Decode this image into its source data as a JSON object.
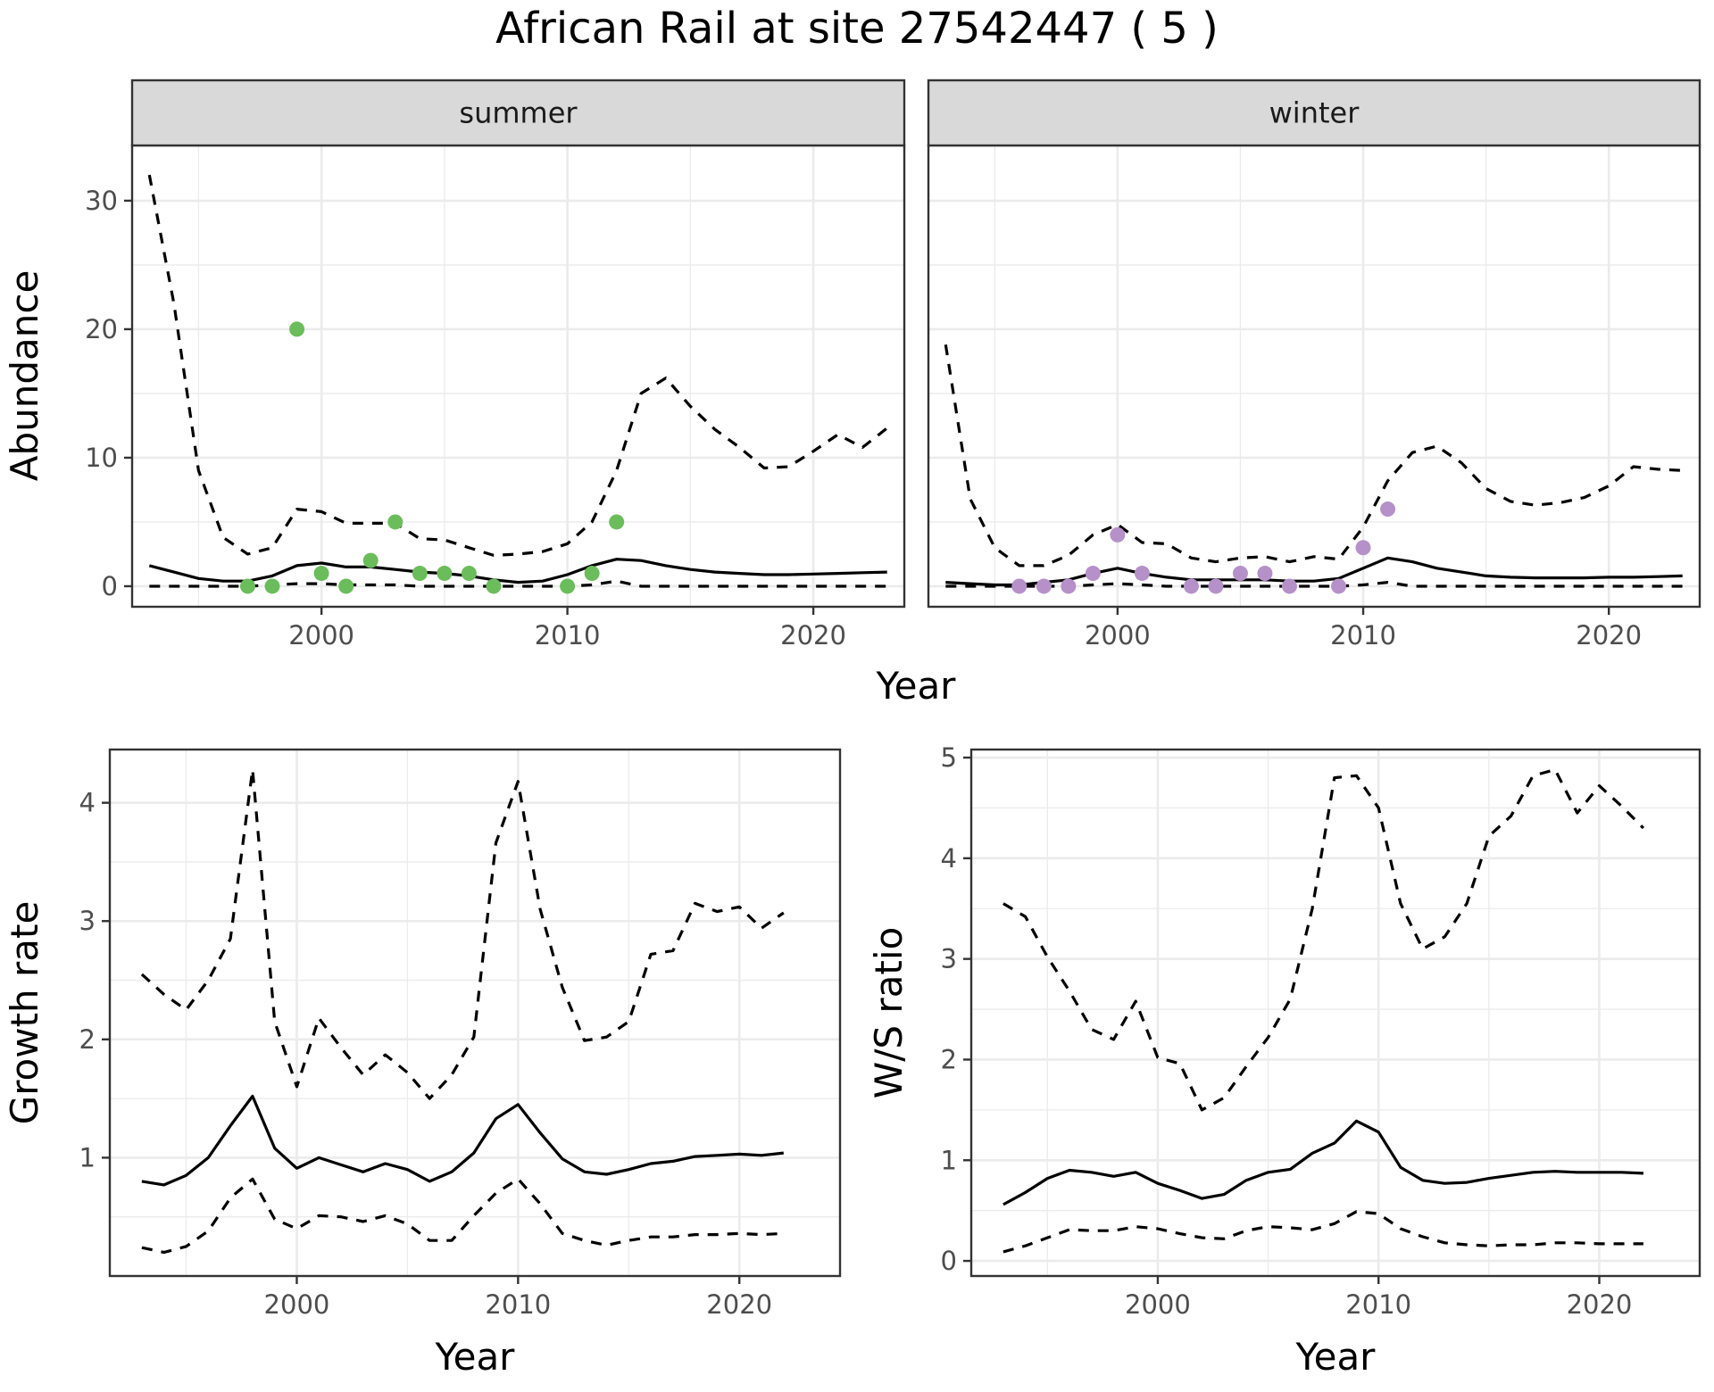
{
  "title": "African Rail at site 27542447 ( 5 )",
  "colors": {
    "summer_points": "#6abd5a",
    "winter_points": "#b690c9"
  },
  "chart_data": [
    {
      "type": "line",
      "panel": "abundance-summer",
      "strip": "summer",
      "ylabel": "Abundance",
      "xlabel": "Year",
      "xlim": [
        1992.3,
        2023.7
      ],
      "ylim": [
        -1.6,
        34.3
      ],
      "x_ticks": [
        2000,
        2010,
        2020
      ],
      "y_ticks": [
        0,
        10,
        20,
        30
      ],
      "grid": true,
      "x": [
        1993,
        1994,
        1995,
        1996,
        1997,
        1998,
        1999,
        2000,
        2001,
        2002,
        2003,
        2004,
        2005,
        2006,
        2007,
        2008,
        2009,
        2010,
        2011,
        2012,
        2013,
        2014,
        2015,
        2016,
        2017,
        2018,
        2019,
        2020,
        2021,
        2022,
        2023
      ],
      "series": [
        {
          "role": "mean",
          "values": [
            1.6,
            1.1,
            0.6,
            0.4,
            0.4,
            0.8,
            1.6,
            1.8,
            1.5,
            1.5,
            1.3,
            1.1,
            1.0,
            0.8,
            0.5,
            0.3,
            0.4,
            0.9,
            1.6,
            2.1,
            2.0,
            1.6,
            1.3,
            1.1,
            1.0,
            0.9,
            0.9,
            0.95,
            1.0,
            1.05,
            1.1
          ]
        },
        {
          "role": "upper",
          "values": [
            32.0,
            22.0,
            9.0,
            3.8,
            2.5,
            3.0,
            6.0,
            5.8,
            4.9,
            4.9,
            4.9,
            3.7,
            3.6,
            3.0,
            2.4,
            2.5,
            2.7,
            3.3,
            5.0,
            9.0,
            15.0,
            16.2,
            14.0,
            12.2,
            10.8,
            9.2,
            9.3,
            10.5,
            11.8,
            10.8,
            12.3
          ]
        },
        {
          "role": "lower",
          "values": [
            0,
            0,
            0,
            0,
            0,
            0.1,
            0.2,
            0.2,
            0.1,
            0.1,
            0.1,
            0,
            0,
            0,
            0,
            0,
            0,
            0,
            0.1,
            0.4,
            0,
            0,
            0,
            0,
            0,
            0,
            0,
            0,
            0,
            0,
            0
          ]
        }
      ],
      "points": {
        "x": [
          1997,
          1998,
          1999,
          2000,
          2001,
          2002,
          2003,
          2004,
          2005,
          2006,
          2007,
          2010,
          2011,
          2012
        ],
        "y": [
          0,
          0,
          20,
          1,
          0,
          2,
          5,
          1,
          1,
          1,
          0,
          0,
          1,
          5
        ]
      }
    },
    {
      "type": "line",
      "panel": "abundance-winter",
      "strip": "winter",
      "ylabel": "",
      "xlabel": "Year",
      "xlim": [
        1992.3,
        2023.7
      ],
      "ylim": [
        -1.6,
        34.3
      ],
      "x_ticks": [
        2000,
        2010,
        2020
      ],
      "y_ticks": [
        0,
        10,
        20,
        30
      ],
      "grid": true,
      "x": [
        1993,
        1994,
        1995,
        1996,
        1997,
        1998,
        1999,
        2000,
        2001,
        2002,
        2003,
        2004,
        2005,
        2006,
        2007,
        2008,
        2009,
        2010,
        2011,
        2012,
        2013,
        2014,
        2015,
        2016,
        2017,
        2018,
        2019,
        2020,
        2021,
        2022,
        2023
      ],
      "series": [
        {
          "role": "mean",
          "values": [
            0.3,
            0.2,
            0.1,
            0.1,
            0.3,
            0.5,
            1.0,
            1.4,
            1.0,
            0.7,
            0.5,
            0.5,
            0.5,
            0.5,
            0.4,
            0.4,
            0.6,
            1.4,
            2.2,
            1.9,
            1.4,
            1.1,
            0.8,
            0.7,
            0.65,
            0.65,
            0.65,
            0.7,
            0.7,
            0.75,
            0.8
          ]
        },
        {
          "role": "upper",
          "values": [
            18.8,
            6.8,
            3.0,
            1.6,
            1.6,
            2.4,
            4.0,
            4.8,
            3.4,
            3.3,
            2.2,
            1.9,
            2.2,
            2.3,
            1.9,
            2.3,
            2.1,
            4.6,
            8.2,
            10.4,
            10.9,
            9.6,
            7.6,
            6.6,
            6.3,
            6.5,
            6.9,
            7.8,
            9.3,
            9.1,
            9.0
          ]
        },
        {
          "role": "lower",
          "values": [
            0,
            0,
            0,
            0,
            0,
            0,
            0.1,
            0.2,
            0.1,
            0,
            0,
            0,
            0,
            0,
            0,
            0,
            0,
            0.1,
            0.3,
            0,
            0,
            0,
            0,
            0,
            0,
            0,
            0,
            0,
            0,
            0,
            0
          ]
        }
      ],
      "points": {
        "x": [
          1996,
          1997,
          1998,
          1999,
          2000,
          2001,
          2003,
          2004,
          2005,
          2006,
          2007,
          2009,
          2010,
          2011
        ],
        "y": [
          0,
          0,
          0,
          1,
          4,
          1,
          0,
          0,
          1,
          1,
          0,
          0,
          3,
          6
        ]
      }
    },
    {
      "type": "line",
      "panel": "growth-rate",
      "strip": "",
      "ylabel": "Growth rate",
      "xlabel": "Year",
      "xlim": [
        1991.55,
        2024.55
      ],
      "ylim": [
        0.0,
        4.45
      ],
      "x_ticks": [
        2000,
        2010,
        2020
      ],
      "y_ticks": [
        1,
        2,
        3,
        4
      ],
      "grid": true,
      "x": [
        1993,
        1994,
        1995,
        1996,
        1997,
        1998,
        1999,
        2000,
        2001,
        2002,
        2003,
        2004,
        2005,
        2006,
        2007,
        2008,
        2009,
        2010,
        2011,
        2012,
        2013,
        2014,
        2015,
        2016,
        2017,
        2018,
        2019,
        2020,
        2021,
        2022
      ],
      "series": [
        {
          "role": "mean",
          "values": [
            0.8,
            0.77,
            0.85,
            1.0,
            1.27,
            1.52,
            1.08,
            0.91,
            1.0,
            0.94,
            0.88,
            0.95,
            0.9,
            0.8,
            0.88,
            1.04,
            1.33,
            1.45,
            1.21,
            0.99,
            0.88,
            0.86,
            0.9,
            0.95,
            0.97,
            1.01,
            1.02,
            1.03,
            1.02,
            1.04
          ]
        },
        {
          "role": "upper",
          "values": [
            2.55,
            2.38,
            2.25,
            2.5,
            2.85,
            4.28,
            2.15,
            1.6,
            2.18,
            1.93,
            1.7,
            1.87,
            1.72,
            1.5,
            1.7,
            2.02,
            3.66,
            4.18,
            3.1,
            2.44,
            1.99,
            2.02,
            2.15,
            2.72,
            2.75,
            3.15,
            3.08,
            3.12,
            2.94,
            3.07
          ]
        },
        {
          "role": "lower",
          "values": [
            0.24,
            0.2,
            0.25,
            0.38,
            0.66,
            0.82,
            0.48,
            0.4,
            0.51,
            0.5,
            0.46,
            0.51,
            0.44,
            0.3,
            0.3,
            0.51,
            0.7,
            0.82,
            0.61,
            0.36,
            0.3,
            0.26,
            0.3,
            0.33,
            0.33,
            0.35,
            0.35,
            0.36,
            0.35,
            0.36
          ]
        }
      ]
    },
    {
      "type": "line",
      "panel": "ws-ratio",
      "strip": "",
      "ylabel": "W/S ratio",
      "xlabel": "Year",
      "xlim": [
        1991.55,
        2024.55
      ],
      "ylim": [
        -0.15,
        5.08
      ],
      "x_ticks": [
        2000,
        2010,
        2020
      ],
      "y_ticks": [
        0,
        1,
        2,
        3,
        4,
        5
      ],
      "grid": true,
      "x": [
        1993,
        1994,
        1995,
        1996,
        1997,
        1998,
        1999,
        2000,
        2001,
        2002,
        2003,
        2004,
        2005,
        2006,
        2007,
        2008,
        2009,
        2010,
        2011,
        2012,
        2013,
        2014,
        2015,
        2016,
        2017,
        2018,
        2019,
        2020,
        2021,
        2022
      ],
      "series": [
        {
          "role": "mean",
          "values": [
            0.56,
            0.68,
            0.82,
            0.9,
            0.88,
            0.84,
            0.88,
            0.77,
            0.7,
            0.62,
            0.66,
            0.8,
            0.88,
            0.91,
            1.07,
            1.17,
            1.39,
            1.28,
            0.93,
            0.8,
            0.77,
            0.78,
            0.82,
            0.85,
            0.88,
            0.89,
            0.88,
            0.88,
            0.88,
            0.87
          ]
        },
        {
          "role": "upper",
          "values": [
            3.55,
            3.42,
            3.02,
            2.68,
            2.3,
            2.2,
            2.58,
            2.02,
            1.96,
            1.5,
            1.62,
            1.93,
            2.22,
            2.6,
            3.5,
            4.8,
            4.82,
            4.5,
            3.55,
            3.1,
            3.22,
            3.55,
            4.22,
            4.42,
            4.82,
            4.88,
            4.45,
            4.72,
            4.52,
            4.3
          ]
        },
        {
          "role": "lower",
          "values": [
            0.09,
            0.15,
            0.23,
            0.31,
            0.3,
            0.3,
            0.34,
            0.32,
            0.27,
            0.23,
            0.22,
            0.3,
            0.34,
            0.33,
            0.31,
            0.37,
            0.49,
            0.47,
            0.32,
            0.24,
            0.18,
            0.16,
            0.15,
            0.16,
            0.16,
            0.18,
            0.18,
            0.17,
            0.17,
            0.17
          ]
        }
      ]
    }
  ]
}
